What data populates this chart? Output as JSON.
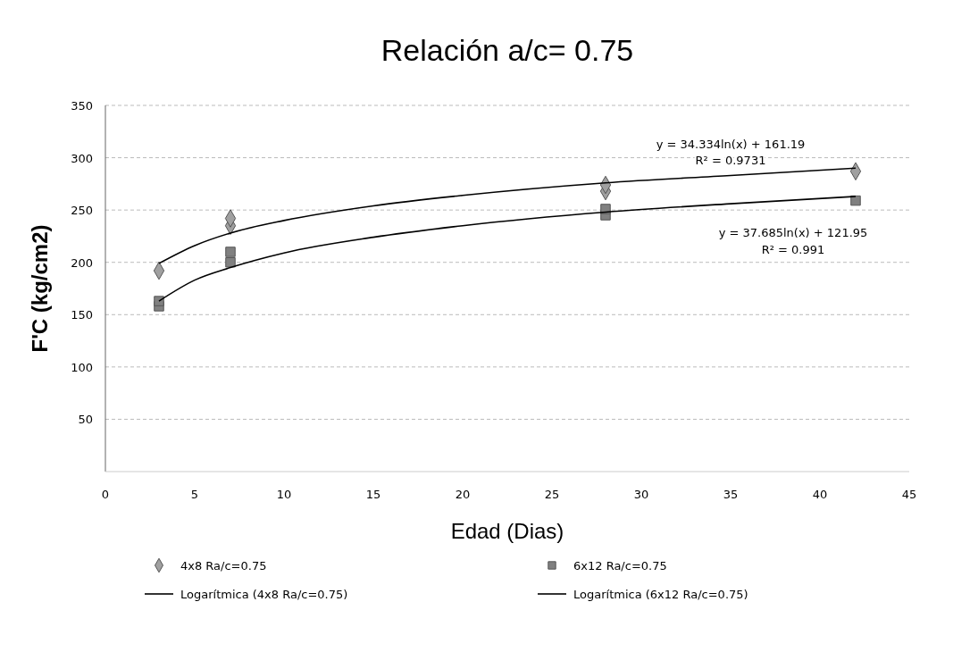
{
  "chart_data": {
    "type": "scatter",
    "title": "Relación a/c= 0.75",
    "xlabel": "Edad (Dias)",
    "ylabel": "F'C (kg/cm2)",
    "xlim": [
      0,
      45
    ],
    "xticks": [
      0,
      5,
      10,
      15,
      20,
      25,
      30,
      35,
      40,
      45
    ],
    "ylim": [
      0,
      350
    ],
    "yticks": [
      50,
      100,
      150,
      200,
      250,
      300,
      350
    ],
    "grid": "y",
    "legend": "bottom",
    "series": [
      {
        "name": "4x8 Ra/c=0.75",
        "marker": "diamond",
        "color": "#a0a0a0",
        "x": [
          3,
          7,
          7,
          28,
          28,
          42
        ],
        "values": [
          192,
          235,
          242,
          268,
          274,
          287
        ]
      },
      {
        "name": "6x12 Ra/c=0.75",
        "marker": "square",
        "color": "#808080",
        "x": [
          3,
          3,
          7,
          7,
          28,
          28,
          42
        ],
        "values": [
          158,
          163,
          200,
          210,
          245,
          251,
          259
        ]
      },
      {
        "name": "Logarítmica (4x8 Ra/c=0.75)",
        "type": "line",
        "marker": "none",
        "line_style": "solid",
        "color": "#000000",
        "x": [
          3,
          5,
          7,
          10,
          15,
          20,
          28,
          35,
          42
        ],
        "values": [
          199,
          216,
          228,
          240,
          254,
          264,
          276,
          283,
          290
        ]
      },
      {
        "name": "Logarítmica (6x12 Ra/c=0.75)",
        "type": "line",
        "marker": "none",
        "line_style": "solid",
        "color": "#000000",
        "x": [
          3,
          5,
          7,
          10,
          15,
          20,
          28,
          35,
          42
        ],
        "values": [
          163,
          183,
          195,
          209,
          224,
          235,
          248,
          256,
          263
        ]
      }
    ],
    "annotations": [
      "y = 34.334ln(x) + 161.19",
      "R² = 0.9731",
      "y = 37.685ln(x) + 121.95",
      "R² = 0.991"
    ]
  }
}
